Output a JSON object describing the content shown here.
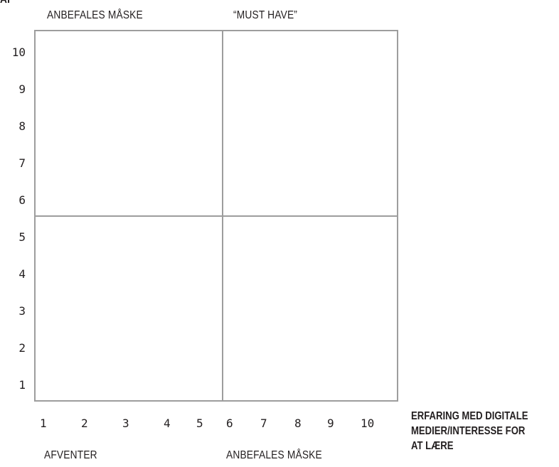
{
  "y_axis_title": "AF",
  "quadrant_labels": {
    "top_left": "ANBEFALES MÅSKE",
    "top_right": "“MUST HAVE”",
    "bottom_left": "AFVENTER",
    "bottom_right": "ANBEFALES MÅSKE"
  },
  "x_axis_title": [
    "ERFARING MED DIGITALE",
    "MEDIER/INTERESSE FOR",
    "AT LÆRE"
  ],
  "y_ticks": [
    "10",
    "9",
    "8",
    "7",
    "6",
    "5",
    "4",
    "3",
    "2",
    "1"
  ],
  "x_ticks": [
    "1",
    "2",
    "3",
    "4",
    "5",
    "6",
    "7",
    "8",
    "9",
    "10"
  ],
  "colors": {
    "grid_line": "#9d9d9d",
    "text": "#231f20"
  }
}
